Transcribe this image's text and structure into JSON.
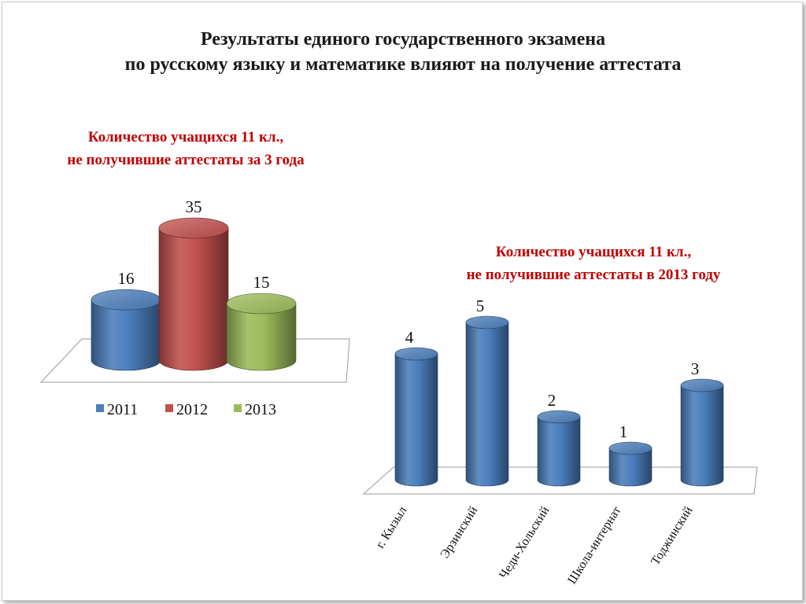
{
  "slide": {
    "title_line1": "Результаты единого государственного экзамена",
    "title_line2": "по русскому языку и математике влияют на получение аттестата"
  },
  "chart_data": [
    {
      "type": "bar",
      "title_line1": "Количество учащихся 11 кл.,",
      "title_line2": "не получившие аттестаты за 3 года",
      "series": [
        {
          "name": "2011",
          "values": [
            16
          ],
          "color": "#4a7ebb"
        },
        {
          "name": "2012",
          "values": [
            35
          ],
          "color": "#c0504d"
        },
        {
          "name": "2013",
          "values": [
            15
          ],
          "color": "#9bbb59"
        }
      ],
      "legend": "bottom",
      "grid": false
    },
    {
      "type": "bar",
      "title_line1": "Количество учащихся 11 кл.,",
      "title_line2": "не получившие аттестаты в 2013 году",
      "categories": [
        "г. Кызыл",
        "Эрзинский",
        "Чеди-Хольский",
        "Школа-интернат",
        "Тоджинский"
      ],
      "values": [
        4,
        5,
        2,
        1,
        3
      ],
      "color": "#4a7ebb",
      "grid": false
    }
  ]
}
